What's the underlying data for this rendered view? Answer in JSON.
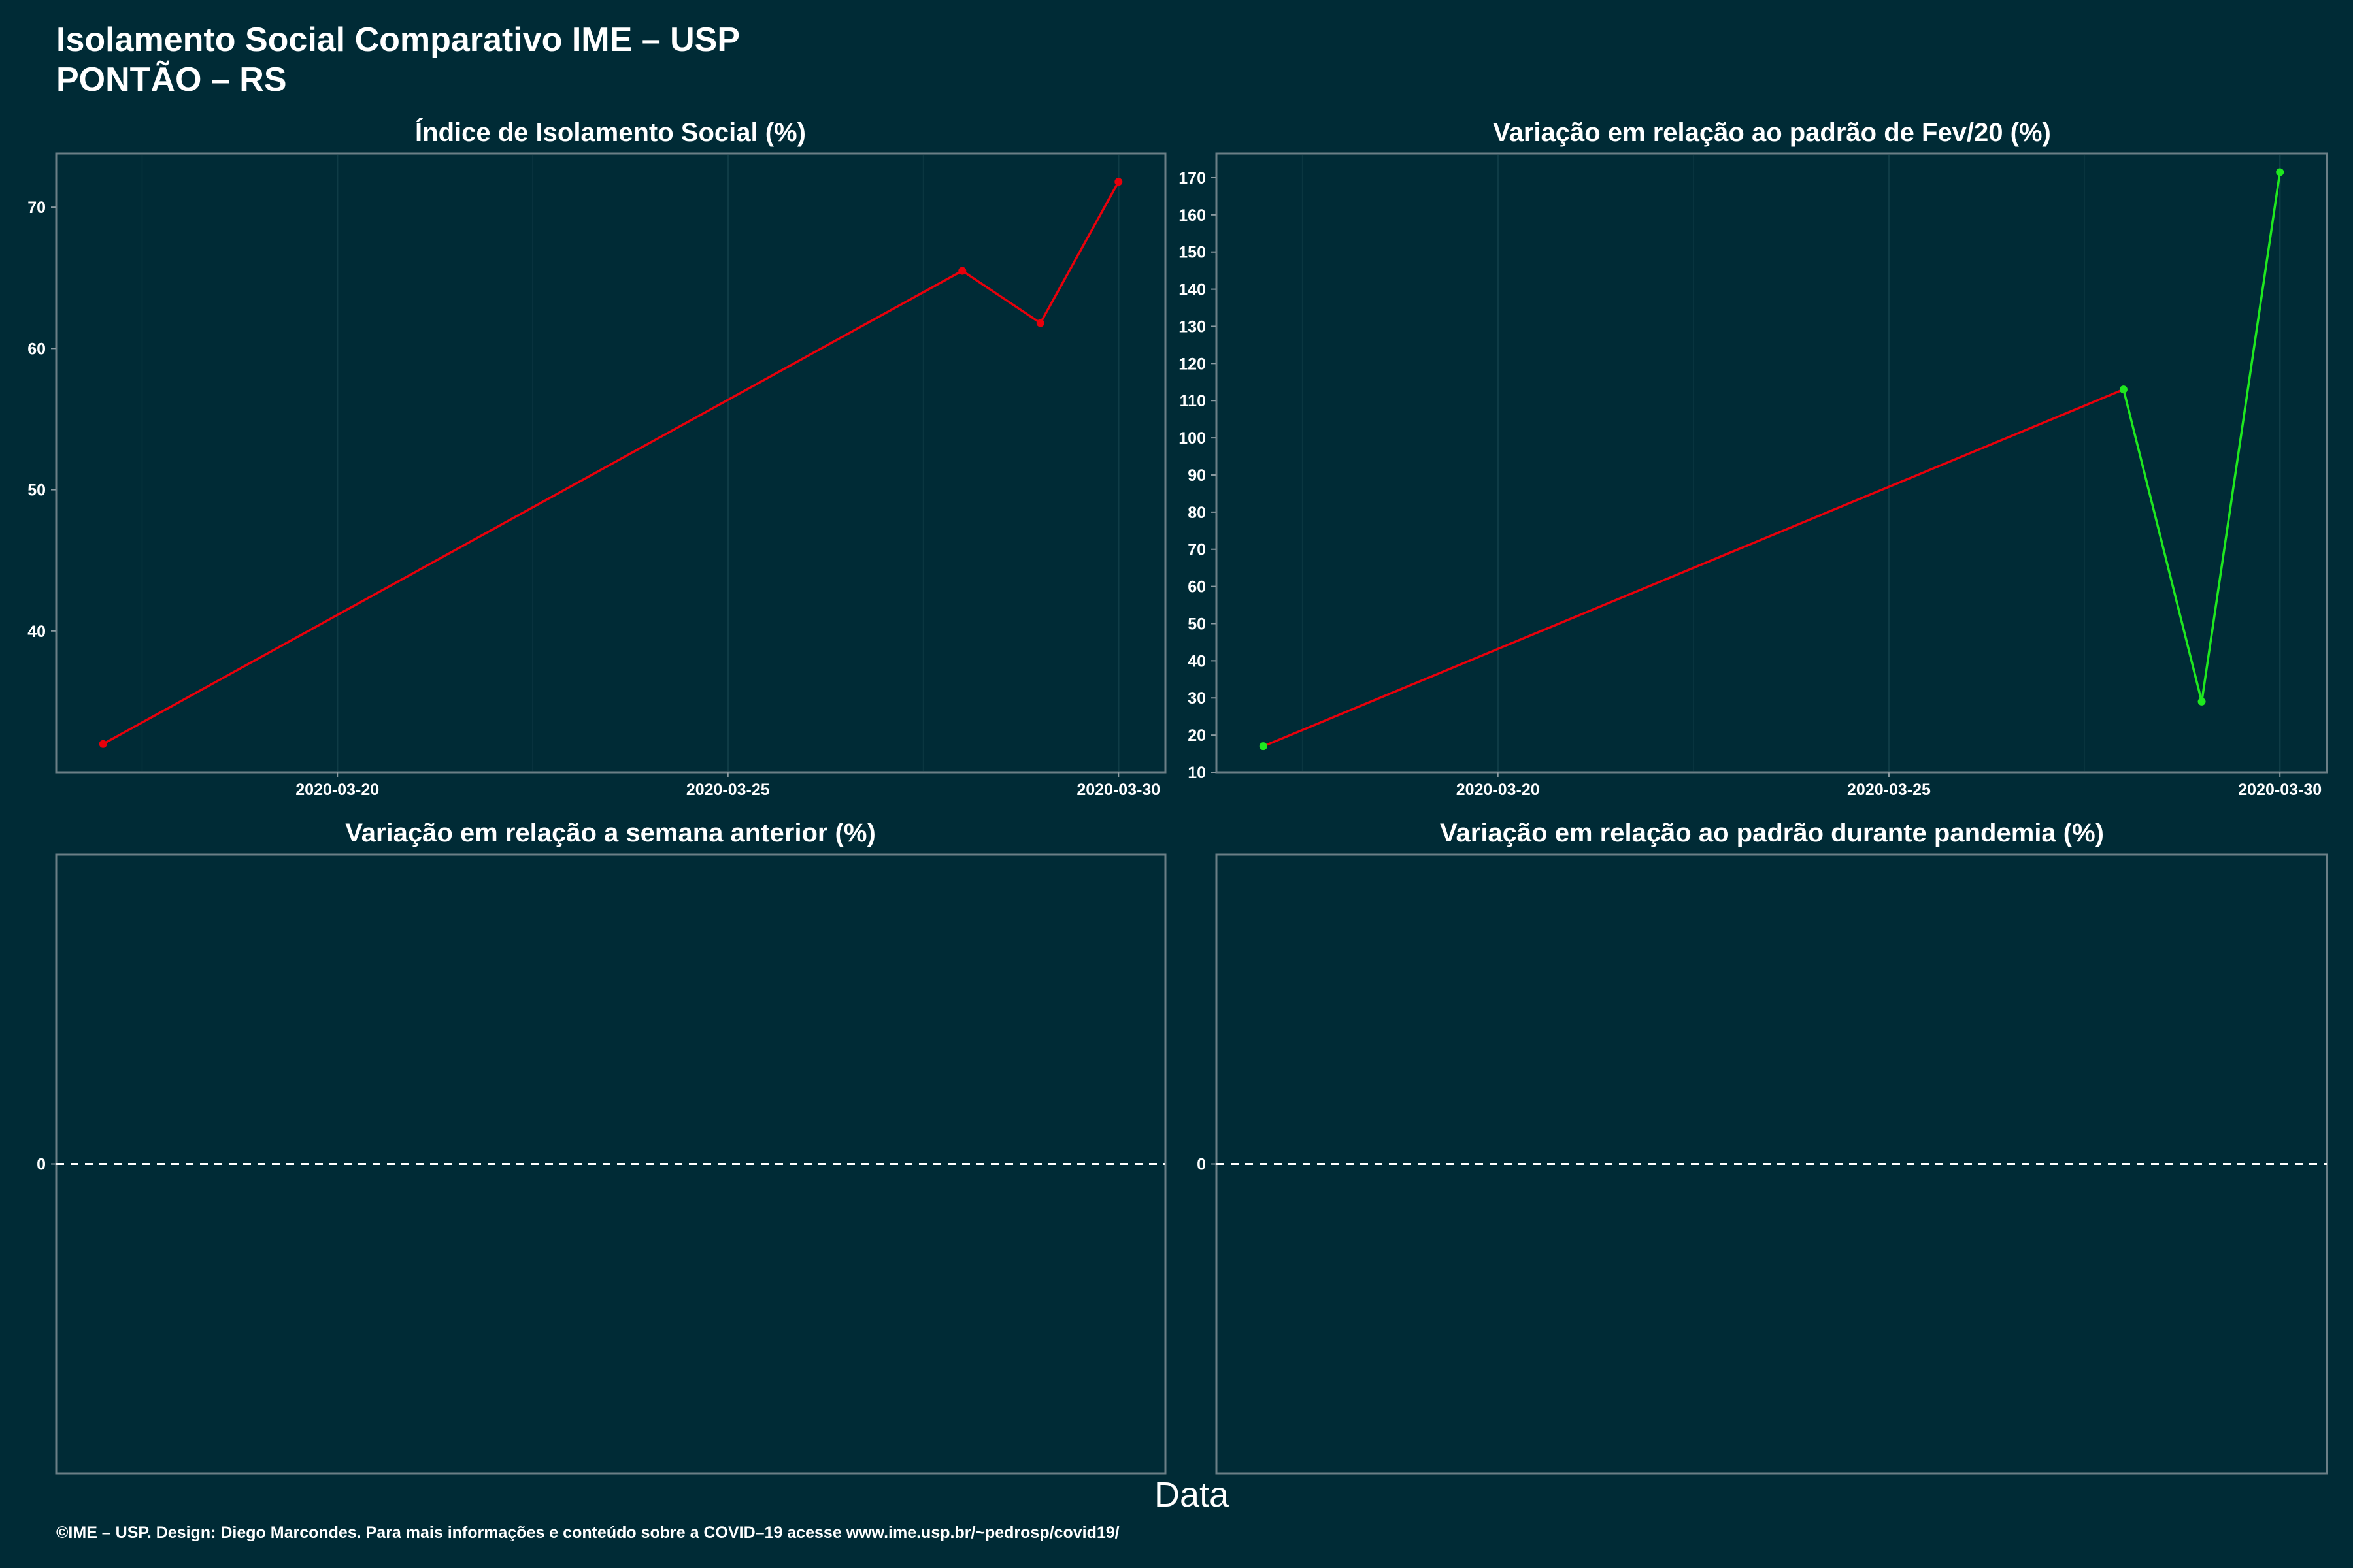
{
  "header": {
    "title_line1": "Isolamento Social Comparativo IME – USP",
    "title_line2": "PONTÃO – RS"
  },
  "x_axis_label": "Data",
  "caption": "©IME – USP. Design: Diego Marcondes. Para mais informações e conteúdo sobre a COVID–19 acesse www.ime.usp.br/~pedrosp/covid19/",
  "colors": {
    "background": "#002b36",
    "red": "#e8000b",
    "green": "#1fe81f",
    "text": "#ffffff"
  },
  "chart_data": [
    {
      "type": "line",
      "title": "Índice de Isolamento Social (%)",
      "xlabel": "Data",
      "ylabel": "",
      "x": [
        "2020-03-17",
        "2020-03-28",
        "2020-03-29",
        "2020-03-30"
      ],
      "values": [
        32.0,
        65.5,
        61.8,
        71.8
      ],
      "segment_colors": [
        "red",
        "red",
        "red"
      ],
      "point_colors": [
        "red",
        "red",
        "red",
        "red"
      ],
      "xlim": [
        "2020-03-16.4",
        "2020-03-30.6"
      ],
      "ylim": [
        30,
        73.8
      ],
      "x_ticks": [
        "2020-03-20",
        "2020-03-25",
        "2020-03-30"
      ],
      "y_ticks": [
        40,
        50,
        60,
        70
      ],
      "grid": true
    },
    {
      "type": "line",
      "title": "Variação em relação ao padrão de Fev/20 (%)",
      "xlabel": "Data",
      "ylabel": "",
      "x": [
        "2020-03-17",
        "2020-03-28",
        "2020-03-29",
        "2020-03-30"
      ],
      "values": [
        17,
        113,
        29,
        171.5
      ],
      "segment_colors": [
        "red",
        "green",
        "green"
      ],
      "point_colors": [
        "green",
        "green",
        "green",
        "green"
      ],
      "xlim": [
        "2020-03-16.4",
        "2020-03-30.6"
      ],
      "ylim": [
        10,
        176.5
      ],
      "x_ticks": [
        "2020-03-20",
        "2020-03-25",
        "2020-03-30"
      ],
      "y_ticks": [
        10,
        20,
        30,
        40,
        50,
        60,
        70,
        80,
        90,
        100,
        110,
        120,
        130,
        140,
        150,
        160,
        170
      ],
      "grid": true
    },
    {
      "type": "line",
      "title": "Variação em relação a semana anterior (%)",
      "xlabel": "Data",
      "ylabel": "",
      "x": [],
      "values": [],
      "ylim": [
        -1,
        1
      ],
      "y_ticks": [
        0
      ],
      "reference_line": 0,
      "grid": false
    },
    {
      "type": "line",
      "title": "Variação em relação ao padrão durante pandemia (%)",
      "xlabel": "Data",
      "ylabel": "",
      "x": [],
      "values": [],
      "ylim": [
        -1,
        1
      ],
      "y_ticks": [
        0
      ],
      "reference_line": 0,
      "grid": false
    }
  ]
}
